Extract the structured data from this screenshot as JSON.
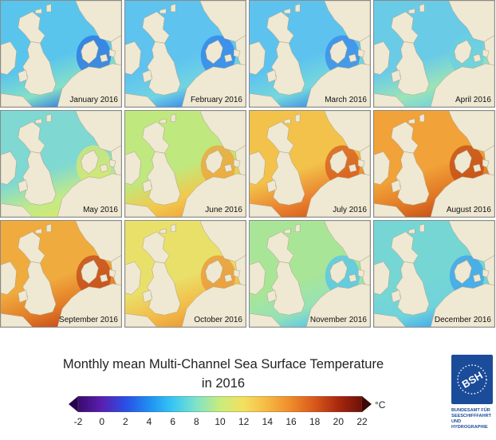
{
  "panels": [
    {
      "label": "January 2016"
    },
    {
      "label": "February 2016"
    },
    {
      "label": "March 2016"
    },
    {
      "label": "April 2016"
    },
    {
      "label": "May 2016"
    },
    {
      "label": "June 2016"
    },
    {
      "label": "July 2016"
    },
    {
      "label": "August 2016"
    },
    {
      "label": "September 2016"
    },
    {
      "label": "October 2016"
    },
    {
      "label": "November 2016"
    },
    {
      "label": "December 2016"
    }
  ],
  "title": {
    "line1": "Monthly mean Multi-Channel Sea Surface Temperature",
    "line2": "in 2016"
  },
  "legend": {
    "unit": "°C",
    "ticks": [
      "-2",
      "0",
      "2",
      "4",
      "6",
      "8",
      "10",
      "12",
      "14",
      "16",
      "18",
      "20",
      "22"
    ],
    "min": -2,
    "max": 22,
    "colors": [
      "#3a0a6e",
      "#5a1fb0",
      "#2a4ee6",
      "#1f8ff2",
      "#38c7f3",
      "#7fe3c9",
      "#c9ec7c",
      "#f3e05f",
      "#f6b843",
      "#ef8a2a",
      "#d8581a",
      "#a8280e",
      "#6e1008"
    ]
  },
  "logo": {
    "abbr": "BSH",
    "lines": [
      "BUNDESAMT FÜR",
      "SEESCHIFFFAHRT",
      "UND",
      "HYDROGRAPHIE"
    ]
  },
  "monthly_palette": {
    "January 2016": {
      "north": "#5ac5ec",
      "south": "#86e0c6",
      "coast": "#2a72e3"
    },
    "February 2016": {
      "north": "#5ec3ef",
      "south": "#71d4e2",
      "coast": "#3080ea"
    },
    "March 2016": {
      "north": "#5dc3ee",
      "south": "#76d8dc",
      "coast": "#3888ea"
    },
    "April 2016": {
      "north": "#6acbe7",
      "south": "#9ce4b6",
      "coast": "#6ad0e2"
    },
    "May 2016": {
      "north": "#7fd8d2",
      "south": "#c0ea88",
      "coast": "#d9e86c"
    },
    "June 2016": {
      "north": "#bfe87e",
      "south": "#f2c94b",
      "coast": "#f0a23a"
    },
    "July 2016": {
      "north": "#f2c24a",
      "south": "#ea8430",
      "coast": "#d65a1c"
    },
    "August 2016": {
      "north": "#f1a238",
      "south": "#e07624",
      "coast": "#c24a16"
    },
    "September 2016": {
      "north": "#f0ab3e",
      "south": "#e27a26",
      "coast": "#c2461a"
    },
    "October 2016": {
      "north": "#e9e06a",
      "south": "#f3bb47",
      "coast": "#e99638"
    },
    "November 2016": {
      "north": "#a9e597",
      "south": "#96e2b6",
      "coast": "#53c4ef"
    },
    "December 2016": {
      "north": "#76d6d4",
      "south": "#6fd3dc",
      "coast": "#3ea2ec"
    }
  }
}
